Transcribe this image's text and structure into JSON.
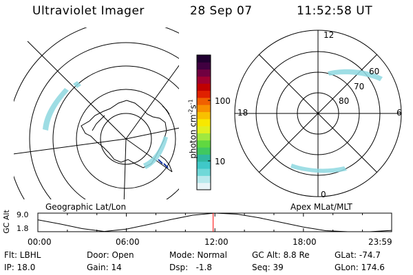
{
  "header": {
    "title": "Ultraviolet Imager",
    "date": "28 Sep 07",
    "time": "11:52:58 UT"
  },
  "geo_panel": {
    "caption": "Geographic Lat/Lon"
  },
  "mag_panel": {
    "caption": "Apex MLat/MLT",
    "mlt_labels": [
      "12",
      "18",
      "6",
      "0"
    ],
    "mlat_labels": [
      "60",
      "70",
      "80"
    ]
  },
  "colorbar": {
    "unit_main": "photon cm",
    "unit_exp1": "-2",
    "unit_s": "s",
    "unit_exp2": "-1",
    "ticks": [
      "100",
      "10"
    ],
    "colors": [
      "#e8f4f8",
      "#b8e8ec",
      "#70d8d8",
      "#40c8c8",
      "#30b8a0",
      "#40c860",
      "#60d840",
      "#a0e840",
      "#e0f020",
      "#f8e800",
      "#f8c000",
      "#f89000",
      "#f06000",
      "#e02000",
      "#c00000",
      "#a00030",
      "#700040",
      "#400040",
      "#200030"
    ]
  },
  "altitude_strip": {
    "axis_label": "GC Alt",
    "y_ticks": [
      "9.0",
      "1.8"
    ],
    "x_ticks": [
      "00:00",
      "06:00",
      "12:00",
      "18:00",
      "23:59"
    ],
    "marker_color": "#ff0000"
  },
  "chart_data": {
    "type": "line",
    "title": "",
    "xlabel": "",
    "ylabel": "GC Alt",
    "x_hours": [
      0,
      1.5,
      3,
      4.5,
      6,
      7.5,
      9,
      10.5,
      12,
      13.5,
      15,
      16.5,
      18,
      19.5,
      21,
      22.5,
      23.98
    ],
    "y_re": [
      6.4,
      4.8,
      3.0,
      1.9,
      2.8,
      4.6,
      6.5,
      8.2,
      9.0,
      8.6,
      7.2,
      5.4,
      3.6,
      2.2,
      1.5,
      1.4,
      2.3
    ],
    "current_time_hours": 11.88,
    "ylim": [
      1.8,
      9.0
    ],
    "xlim": [
      0,
      23.98
    ]
  },
  "footer": {
    "row1": [
      "Flt: LBHL",
      "Door: Open",
      "Mode: Normal",
      "GC Alt: 8.8 Re",
      "GLat: -74.7"
    ],
    "row2": [
      "IP: 18.0",
      "Gain: 14",
      "Dsp:   -1.8",
      "Seq: 39",
      "GLon: 174.6"
    ]
  }
}
